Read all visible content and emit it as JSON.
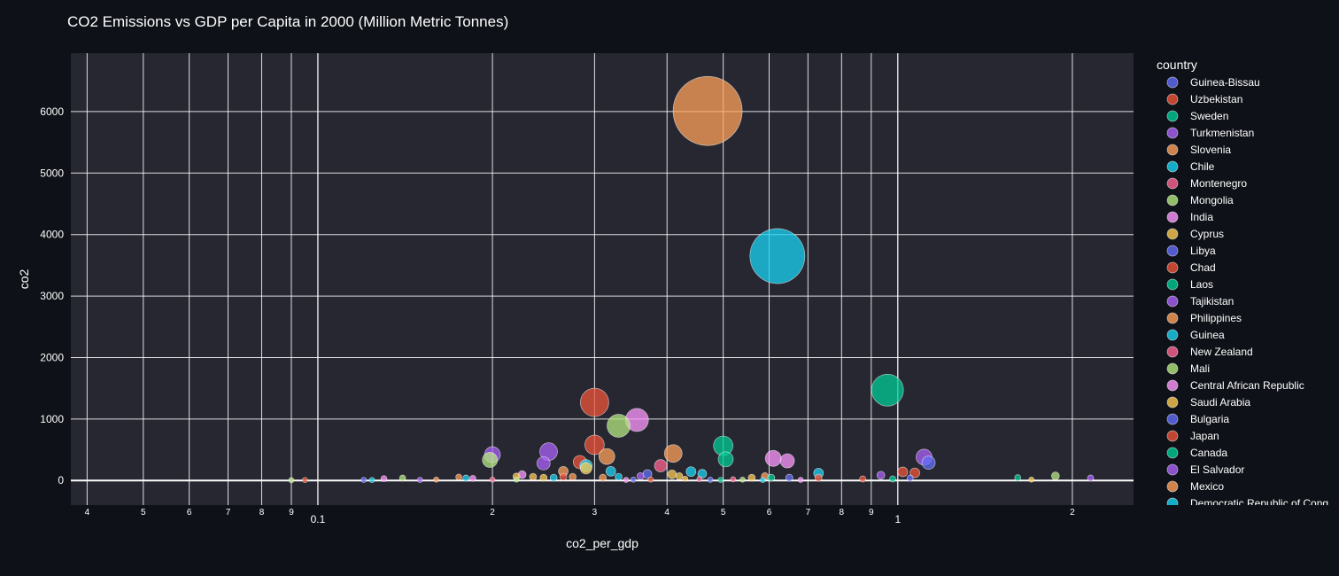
{
  "colors": {
    "page_bg": "#0e1117",
    "plot_bg": "#262730",
    "grid": "#ffffff",
    "palette": [
      "#636efa",
      "#EF553B",
      "#00cc96",
      "#ab63fa",
      "#FFA15A",
      "#19d3f3",
      "#FF6692",
      "#B6E880",
      "#FF97FF",
      "#FECB52"
    ]
  },
  "chart_data": {
    "type": "scatter",
    "title": "CO2 Emissions vs GDP per Capita in 2000 (Million Metric Tonnes)",
    "xlabel": "co2_per_gdp",
    "ylabel": "co2",
    "x_scale": "log",
    "xlim": [
      0.0375,
      2.55
    ],
    "ylim": [
      -400,
      6950
    ],
    "y_ticks": [
      0,
      1000,
      2000,
      3000,
      4000,
      5000,
      6000
    ],
    "y_tick_labels": [
      "0",
      "1000",
      "2000",
      "3000",
      "4000",
      "5000",
      "6000"
    ],
    "x_ticks_major": [
      0.1,
      1
    ],
    "x_tick_labels_major": [
      "0.1",
      "1"
    ],
    "x_ticks_minor": [
      0.04,
      0.05,
      0.06,
      0.07,
      0.08,
      0.09,
      0.2,
      0.3,
      0.4,
      0.5,
      0.6,
      0.7,
      0.8,
      0.9,
      2
    ],
    "x_tick_labels_minor": [
      "4",
      "5",
      "6",
      "7",
      "8",
      "9",
      "2",
      "3",
      "4",
      "5",
      "6",
      "7",
      "8",
      "9",
      "2"
    ],
    "legend_title": "country",
    "legend_placement": "right",
    "legend": [
      "Guinea-Bissau",
      "Uzbekistan",
      "Sweden",
      "Turkmenistan",
      "Slovenia",
      "Chile",
      "Montenegro",
      "Mongolia",
      "India",
      "Cyprus",
      "Libya",
      "Chad",
      "Laos",
      "Tajikistan",
      "Philippines",
      "Guinea",
      "New Zealand",
      "Mali",
      "Central African Republic",
      "Saudi Arabia",
      "Bulgaria",
      "Japan",
      "Canada",
      "El Salvador",
      "Mexico",
      "Democratic Republic of Cong"
    ],
    "points": [
      {
        "x": 0.47,
        "y": 6010,
        "s": 78,
        "c": 4
      },
      {
        "x": 0.62,
        "y": 3650,
        "s": 62,
        "c": 5
      },
      {
        "x": 0.96,
        "y": 1470,
        "s": 36,
        "c": 2
      },
      {
        "x": 0.3,
        "y": 1270,
        "s": 32,
        "c": 1
      },
      {
        "x": 0.355,
        "y": 985,
        "s": 26,
        "c": 8
      },
      {
        "x": 0.33,
        "y": 890,
        "s": 26,
        "c": 7
      },
      {
        "x": 0.3,
        "y": 580,
        "s": 22,
        "c": 1
      },
      {
        "x": 0.5,
        "y": 565,
        "s": 22,
        "c": 2
      },
      {
        "x": 0.25,
        "y": 470,
        "s": 20,
        "c": 3
      },
      {
        "x": 0.41,
        "y": 440,
        "s": 20,
        "c": 4
      },
      {
        "x": 0.2,
        "y": 420,
        "s": 18,
        "c": 3
      },
      {
        "x": 0.315,
        "y": 390,
        "s": 18,
        "c": 4
      },
      {
        "x": 0.61,
        "y": 360,
        "s": 18,
        "c": 8
      },
      {
        "x": 1.11,
        "y": 380,
        "s": 18,
        "c": 3
      },
      {
        "x": 0.505,
        "y": 345,
        "s": 17,
        "c": 2
      },
      {
        "x": 0.198,
        "y": 335,
        "s": 17,
        "c": 7
      },
      {
        "x": 0.645,
        "y": 320,
        "s": 16,
        "c": 8
      },
      {
        "x": 1.13,
        "y": 290,
        "s": 15,
        "c": 0
      },
      {
        "x": 0.245,
        "y": 280,
        "s": 15,
        "c": 3
      },
      {
        "x": 0.283,
        "y": 300,
        "s": 15,
        "c": 1
      },
      {
        "x": 0.39,
        "y": 240,
        "s": 14,
        "c": 6
      },
      {
        "x": 0.29,
        "y": 240,
        "s": 14,
        "c": 5
      },
      {
        "x": 0.29,
        "y": 200,
        "s": 13,
        "c": 9
      },
      {
        "x": 0.265,
        "y": 150,
        "s": 11,
        "c": 4
      },
      {
        "x": 0.32,
        "y": 150,
        "s": 11,
        "c": 5
      },
      {
        "x": 0.44,
        "y": 145,
        "s": 11,
        "c": 5
      },
      {
        "x": 1.02,
        "y": 140,
        "s": 11,
        "c": 1
      },
      {
        "x": 1.07,
        "y": 125,
        "s": 11,
        "c": 1
      },
      {
        "x": 0.73,
        "y": 120,
        "s": 11,
        "c": 5
      },
      {
        "x": 0.46,
        "y": 110,
        "s": 10,
        "c": 5
      },
      {
        "x": 0.37,
        "y": 105,
        "s": 10,
        "c": 0
      },
      {
        "x": 0.408,
        "y": 100,
        "s": 10,
        "c": 9
      },
      {
        "x": 0.225,
        "y": 95,
        "s": 9,
        "c": 8
      },
      {
        "x": 0.935,
        "y": 85,
        "s": 9,
        "c": 3
      },
      {
        "x": 1.87,
        "y": 75,
        "s": 9,
        "c": 7
      },
      {
        "x": 0.22,
        "y": 65,
        "s": 8,
        "c": 9
      },
      {
        "x": 0.235,
        "y": 60,
        "s": 8,
        "c": 9
      },
      {
        "x": 0.33,
        "y": 60,
        "s": 8,
        "c": 5
      },
      {
        "x": 0.36,
        "y": 70,
        "s": 8,
        "c": 3
      },
      {
        "x": 0.42,
        "y": 70,
        "s": 8,
        "c": 9
      },
      {
        "x": 0.56,
        "y": 45,
        "s": 8,
        "c": 9
      },
      {
        "x": 0.59,
        "y": 70,
        "s": 8,
        "c": 4
      },
      {
        "x": 0.605,
        "y": 45,
        "s": 8,
        "c": 2
      },
      {
        "x": 0.65,
        "y": 45,
        "s": 8,
        "c": 0
      },
      {
        "x": 0.73,
        "y": 45,
        "s": 8,
        "c": 1
      },
      {
        "x": 0.265,
        "y": 60,
        "s": 8,
        "c": 1
      },
      {
        "x": 0.255,
        "y": 45,
        "s": 8,
        "c": 5
      },
      {
        "x": 0.245,
        "y": 45,
        "s": 8,
        "c": 9
      },
      {
        "x": 0.275,
        "y": 60,
        "s": 8,
        "c": 4
      },
      {
        "x": 0.31,
        "y": 45,
        "s": 8,
        "c": 4
      },
      {
        "x": 0.175,
        "y": 55,
        "s": 7,
        "c": 4
      },
      {
        "x": 0.18,
        "y": 40,
        "s": 7,
        "c": 5
      },
      {
        "x": 0.185,
        "y": 35,
        "s": 7,
        "c": 8
      },
      {
        "x": 0.14,
        "y": 40,
        "s": 7,
        "c": 7
      },
      {
        "x": 0.13,
        "y": 30,
        "s": 7,
        "c": 8
      },
      {
        "x": 1.61,
        "y": 45,
        "s": 7,
        "c": 2
      },
      {
        "x": 2.15,
        "y": 40,
        "s": 7,
        "c": 3
      },
      {
        "x": 1.05,
        "y": 40,
        "s": 7,
        "c": 0
      },
      {
        "x": 0.87,
        "y": 25,
        "s": 7,
        "c": 1
      },
      {
        "x": 0.98,
        "y": 25,
        "s": 7,
        "c": 2
      },
      {
        "x": 0.43,
        "y": 30,
        "s": 6,
        "c": 9
      },
      {
        "x": 0.455,
        "y": 25,
        "s": 6,
        "c": 6
      },
      {
        "x": 0.52,
        "y": 20,
        "s": 6,
        "c": 6
      },
      {
        "x": 0.54,
        "y": 15,
        "s": 6,
        "c": 7
      },
      {
        "x": 0.68,
        "y": 10,
        "s": 6,
        "c": 8
      },
      {
        "x": 0.35,
        "y": 15,
        "s": 6,
        "c": 0
      },
      {
        "x": 0.34,
        "y": 10,
        "s": 6,
        "c": 8
      },
      {
        "x": 0.375,
        "y": 15,
        "s": 6,
        "c": 1
      },
      {
        "x": 0.22,
        "y": 15,
        "s": 6,
        "c": 7
      },
      {
        "x": 0.2,
        "y": 15,
        "s": 6,
        "c": 6
      },
      {
        "x": 0.16,
        "y": 15,
        "s": 6,
        "c": 4
      },
      {
        "x": 0.15,
        "y": 10,
        "s": 6,
        "c": 3
      },
      {
        "x": 0.12,
        "y": 10,
        "s": 6,
        "c": 0
      },
      {
        "x": 0.124,
        "y": 8,
        "s": 6,
        "c": 5
      },
      {
        "x": 0.095,
        "y": 8,
        "s": 6,
        "c": 1
      },
      {
        "x": 0.09,
        "y": 5,
        "s": 6,
        "c": 7
      },
      {
        "x": 1.7,
        "y": 15,
        "s": 6,
        "c": 9
      },
      {
        "x": 0.495,
        "y": 10,
        "s": 6,
        "c": 2
      },
      {
        "x": 0.585,
        "y": 8,
        "s": 6,
        "c": 5
      },
      {
        "x": 0.475,
        "y": 12,
        "s": 6,
        "c": 0
      }
    ]
  }
}
